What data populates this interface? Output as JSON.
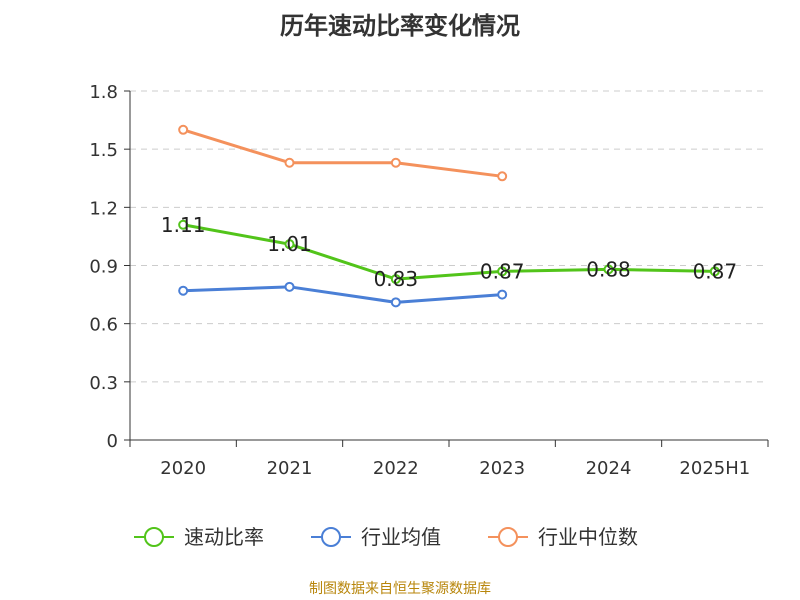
{
  "chart_data": {
    "type": "line",
    "title": "历年速动比率变化情况",
    "categories": [
      "2020",
      "2021",
      "2022",
      "2023",
      "2024",
      "2025H1"
    ],
    "yticks": [
      "0",
      "0.3",
      "0.6",
      "0.9",
      "1.2",
      "1.5",
      "1.8"
    ],
    "ylim": [
      0,
      1.8
    ],
    "grid": "horizontal dashed",
    "legend_position": "bottom",
    "series": [
      {
        "name": "速动比率",
        "color": "#52c41a",
        "values": [
          1.11,
          1.01,
          0.83,
          0.87,
          0.88,
          0.87
        ],
        "labels": [
          "1.11",
          "1.01",
          "0.83",
          "0.87",
          "0.88",
          "0.87"
        ]
      },
      {
        "name": "行业均值",
        "color": "#4a7fd6",
        "values": [
          0.77,
          0.79,
          0.71,
          0.75,
          null,
          null
        ]
      },
      {
        "name": "行业中位数",
        "color": "#f4915c",
        "values": [
          1.6,
          1.43,
          1.43,
          1.36,
          null,
          null
        ]
      }
    ]
  },
  "footer": {
    "source": "制图数据来自恒生聚源数据库"
  }
}
